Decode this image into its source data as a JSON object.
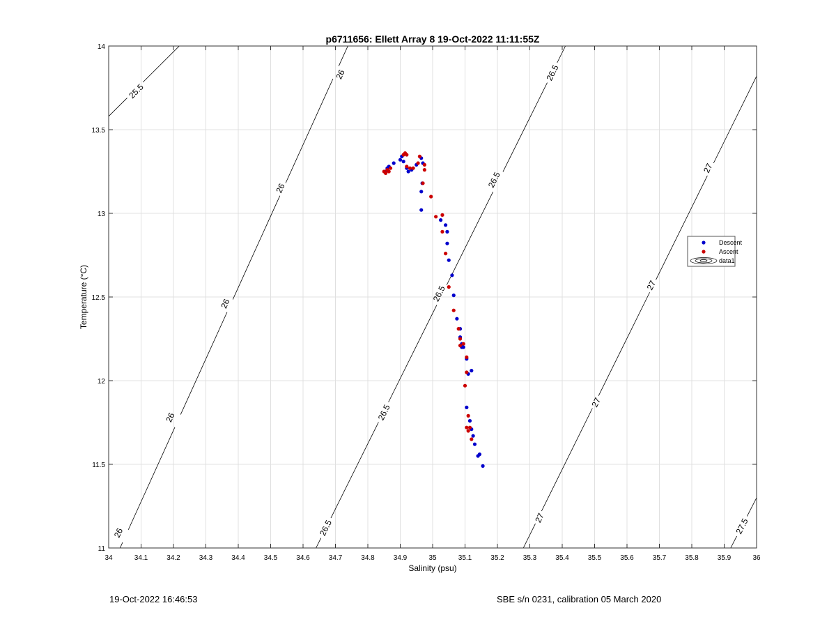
{
  "chart_data": {
    "type": "scatter",
    "title": "p6711656: Ellett Array 8 19-Oct-2022 11:11:55Z",
    "xlabel": "Salinity (psu)",
    "ylabel": "Temperature (°C)",
    "xlim": [
      34,
      36
    ],
    "ylim": [
      11,
      14
    ],
    "xticks": [
      34,
      34.1,
      34.2,
      34.3,
      34.4,
      34.5,
      34.6,
      34.7,
      34.8,
      34.9,
      35,
      35.1,
      35.2,
      35.3,
      35.4,
      35.5,
      35.6,
      35.7,
      35.8,
      35.9,
      36
    ],
    "xtick_labels": [
      "34",
      "34.1",
      "34.2",
      "34.3",
      "34.4",
      "34.5",
      "34.6",
      "34.7",
      "34.8",
      "34.9",
      "35",
      "35.1",
      "35.2",
      "35.3",
      "35.4",
      "35.5",
      "35.6",
      "35.7",
      "35.8",
      "35.9",
      "36"
    ],
    "yticks": [
      11,
      11.5,
      12,
      12.5,
      13,
      13.5,
      14
    ],
    "ytick_labels": [
      "11",
      "11.5",
      "12",
      "12.5",
      "13",
      "13.5",
      "14"
    ],
    "grid": true,
    "legend_position": "right",
    "legend": [
      "Descent",
      "Ascent",
      "data1"
    ],
    "series": [
      {
        "name": "Descent",
        "color": "#0000cc",
        "marker": "dot",
        "points": [
          [
            34.855,
            13.25
          ],
          [
            34.86,
            13.27
          ],
          [
            34.865,
            13.28
          ],
          [
            34.88,
            13.3
          ],
          [
            34.9,
            13.32
          ],
          [
            34.905,
            13.34
          ],
          [
            34.91,
            13.31
          ],
          [
            34.92,
            13.27
          ],
          [
            34.925,
            13.25
          ],
          [
            34.935,
            13.26
          ],
          [
            34.95,
            13.29
          ],
          [
            34.965,
            13.33
          ],
          [
            34.97,
            13.3
          ],
          [
            34.968,
            13.18
          ],
          [
            34.965,
            13.13
          ],
          [
            34.965,
            13.02
          ],
          [
            35.025,
            12.96
          ],
          [
            35.04,
            12.93
          ],
          [
            35.045,
            12.89
          ],
          [
            35.045,
            12.82
          ],
          [
            35.05,
            12.72
          ],
          [
            35.06,
            12.63
          ],
          [
            35.065,
            12.51
          ],
          [
            35.075,
            12.37
          ],
          [
            35.085,
            12.31
          ],
          [
            35.085,
            12.26
          ],
          [
            35.09,
            12.22
          ],
          [
            35.09,
            12.2
          ],
          [
            35.095,
            12.2
          ],
          [
            35.105,
            12.13
          ],
          [
            35.11,
            12.04
          ],
          [
            35.12,
            12.06
          ],
          [
            35.105,
            11.84
          ],
          [
            35.115,
            11.76
          ],
          [
            35.12,
            11.71
          ],
          [
            35.125,
            11.67
          ],
          [
            35.13,
            11.62
          ],
          [
            35.14,
            11.55
          ],
          [
            35.145,
            11.56
          ],
          [
            35.155,
            11.49
          ]
        ]
      },
      {
        "name": "Ascent",
        "color": "#cc0000",
        "marker": "dot",
        "points": [
          [
            34.85,
            13.25
          ],
          [
            34.855,
            13.24
          ],
          [
            34.86,
            13.26
          ],
          [
            34.865,
            13.25
          ],
          [
            34.87,
            13.27
          ],
          [
            34.91,
            13.35
          ],
          [
            34.915,
            13.36
          ],
          [
            34.92,
            13.35
          ],
          [
            34.92,
            13.28
          ],
          [
            34.93,
            13.27
          ],
          [
            34.94,
            13.27
          ],
          [
            34.955,
            13.3
          ],
          [
            34.96,
            13.34
          ],
          [
            34.975,
            13.29
          ],
          [
            34.975,
            13.26
          ],
          [
            34.97,
            13.18
          ],
          [
            34.995,
            13.1
          ],
          [
            35.01,
            12.98
          ],
          [
            35.03,
            12.99
          ],
          [
            35.03,
            12.89
          ],
          [
            35.04,
            12.76
          ],
          [
            35.05,
            12.56
          ],
          [
            35.065,
            12.42
          ],
          [
            35.08,
            12.31
          ],
          [
            35.085,
            12.25
          ],
          [
            35.085,
            12.21
          ],
          [
            35.095,
            12.22
          ],
          [
            35.105,
            12.14
          ],
          [
            35.105,
            12.05
          ],
          [
            35.1,
            11.97
          ],
          [
            35.105,
            11.72
          ],
          [
            35.11,
            11.79
          ],
          [
            35.11,
            11.7
          ],
          [
            35.115,
            11.72
          ],
          [
            35.12,
            11.65
          ]
        ]
      }
    ],
    "contours": [
      {
        "level_label": "25.5",
        "line": [
          [
            34.0,
            13.58
          ],
          [
            34.218,
            14.0
          ]
        ],
        "labels": [
          [
            34.085,
            13.73
          ]
        ]
      },
      {
        "level_label": "26",
        "line": [
          [
            34.0,
            10.85
          ],
          [
            34.75,
            14.05
          ]
        ],
        "labels": [
          [
            34.03,
            11.09
          ],
          [
            34.19,
            11.78
          ],
          [
            34.36,
            12.46
          ],
          [
            34.53,
            13.15
          ],
          [
            34.715,
            13.83
          ]
        ]
      },
      {
        "level_label": "26.5",
        "line": [
          [
            34.64,
            11.0
          ],
          [
            35.41,
            14.0
          ]
        ],
        "labels": [
          [
            34.67,
            11.12
          ],
          [
            34.85,
            11.81
          ],
          [
            35.02,
            12.52
          ],
          [
            35.19,
            13.2
          ],
          [
            35.37,
            13.84
          ]
        ]
      },
      {
        "level_label": "27",
        "line": [
          [
            35.28,
            11.0
          ],
          [
            36.0,
            13.82
          ]
        ],
        "labels": [
          [
            35.33,
            11.18
          ],
          [
            35.505,
            11.87
          ],
          [
            35.675,
            12.57
          ],
          [
            35.85,
            13.27
          ]
        ]
      },
      {
        "level_label": "27.5",
        "line": [
          [
            35.92,
            11.0
          ],
          [
            36.0,
            11.3
          ]
        ],
        "labels": [
          [
            35.955,
            11.13
          ]
        ]
      }
    ]
  },
  "footer": {
    "left": "19-Oct-2022 16:46:53",
    "right": "SBE s/n 0231, calibration 05 March 2020"
  },
  "colors": {
    "descent": "#0000cc",
    "ascent": "#cc0000",
    "grid": "#e0e0e0",
    "axis": "#333333"
  }
}
